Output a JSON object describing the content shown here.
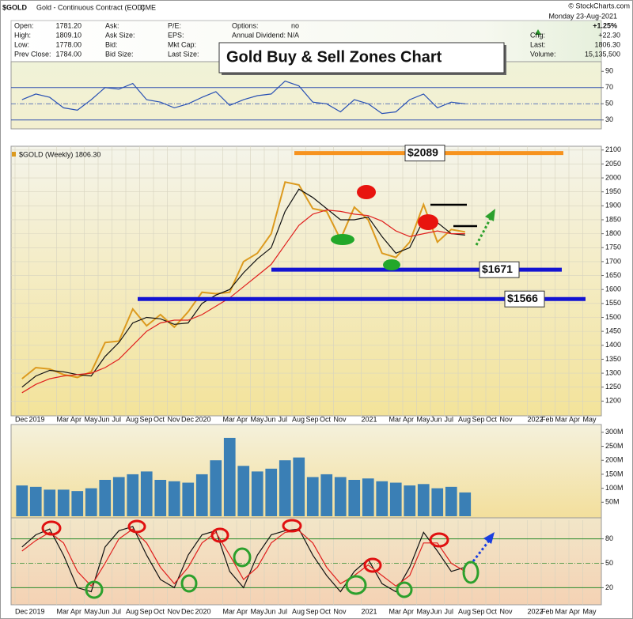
{
  "header": {
    "ticker": "$GOLD",
    "description": "Gold - Continuous Contract (EOD)",
    "exchange": "CME",
    "credit": "© StockCharts.com",
    "quote": [
      [
        "Open:",
        "1781.20"
      ],
      [
        "High:",
        "1809.10"
      ],
      [
        "Low:",
        "1778.00"
      ],
      [
        "Prev Close:",
        "1784.00"
      ]
    ],
    "col2": [
      "Ask:",
      "Ask Size:",
      "Bid:",
      "Bid Size:"
    ],
    "col3": [
      "P/E:",
      "EPS:",
      "Mkt Cap:",
      "Last Size:"
    ],
    "col4": [
      [
        "Options:",
        "no"
      ],
      [
        "Annual Dividend:",
        "N/A"
      ]
    ],
    "date": "Monday  23-Aug-2021",
    "change_pct": "+1.25%",
    "stats": [
      [
        "Chg:",
        "+22.30"
      ],
      [
        "Last:",
        "1806.30"
      ],
      [
        "Volume:",
        "15,135,500"
      ]
    ]
  },
  "chart_data": [
    {
      "type": "line",
      "series": [
        {
          "color": "#2850b4",
          "values": [
            55,
            62,
            58,
            45,
            42,
            55,
            70,
            68,
            75,
            55,
            52,
            45,
            50,
            58,
            65,
            48,
            55,
            60,
            62,
            78,
            72,
            52,
            50,
            40,
            55,
            50,
            38,
            40,
            55,
            62,
            45,
            52,
            50,
            null,
            null,
            null,
            null,
            null,
            null,
            null,
            null,
            null
          ]
        }
      ],
      "ylim": [
        20,
        100
      ],
      "yticks": [
        90,
        70,
        50,
        30
      ],
      "ref_lines": [
        70,
        50,
        30
      ]
    },
    {
      "type": "line",
      "title": "Gold Buy & Sell Zones Chart",
      "label": "$GOLD (Weekly) 1806.30",
      "categories": [
        "Dec",
        "2019",
        null,
        "Mar",
        "Apr",
        "May",
        "Jun",
        "Jul",
        "Aug",
        "Sep",
        "Oct",
        "Nov",
        "Dec",
        "2020",
        null,
        "Mar",
        "Apr",
        "May",
        "Jun",
        "Jul",
        "Aug",
        "Sep",
        "Oct",
        "Nov",
        null,
        "2021",
        null,
        "Mar",
        "Apr",
        "May",
        "Jun",
        "Jul",
        "Aug",
        "Sep",
        "Oct",
        "Nov",
        null,
        "2022",
        "Feb",
        "Mar",
        "Apr",
        "May"
      ],
      "series": [
        {
          "color": "#dc9a1e",
          "values": [
            1280,
            1320,
            1315,
            1295,
            1285,
            1305,
            1410,
            1415,
            1530,
            1470,
            1510,
            1465,
            1520,
            1590,
            1585,
            1590,
            1700,
            1730,
            1800,
            1985,
            1975,
            1890,
            1880,
            1780,
            1895,
            1850,
            1730,
            1715,
            1770,
            1905,
            1770,
            1815,
            1806.3,
            null,
            null,
            null,
            null,
            null,
            null,
            null,
            null,
            null
          ]
        },
        {
          "color": "#111111",
          "values": [
            1250,
            1290,
            1310,
            1305,
            1295,
            1290,
            1360,
            1410,
            1480,
            1500,
            1495,
            1475,
            1480,
            1550,
            1580,
            1600,
            1660,
            1710,
            1750,
            1880,
            1960,
            1930,
            1890,
            1850,
            1850,
            1860,
            1790,
            1730,
            1750,
            1850,
            1840,
            1800,
            1795,
            null,
            null,
            null,
            null,
            null,
            null,
            null,
            null,
            null
          ]
        },
        {
          "color": "#e0201e",
          "values": [
            1230,
            1260,
            1280,
            1290,
            1295,
            1300,
            1320,
            1350,
            1400,
            1450,
            1480,
            1490,
            1490,
            1510,
            1540,
            1570,
            1610,
            1650,
            1690,
            1760,
            1830,
            1870,
            1885,
            1880,
            1870,
            1865,
            1845,
            1810,
            1790,
            1800,
            1810,
            1800,
            1800,
            null,
            null,
            null,
            null,
            null,
            null,
            null,
            null,
            null
          ]
        }
      ],
      "levels": [
        {
          "value": 2089,
          "label": "$2089",
          "color": "#f7931e"
        },
        {
          "value": 1671,
          "label": "$1671",
          "color": "#1414d2"
        },
        {
          "value": 1566,
          "label": "$1566",
          "color": "#1414d2"
        }
      ],
      "ylim": [
        1150,
        2105
      ],
      "yticks": [
        2100,
        2050,
        2000,
        1950,
        1900,
        1850,
        1800,
        1750,
        1700,
        1650,
        1600,
        1550,
        1500,
        1450,
        1400,
        1350,
        1300,
        1250,
        1200
      ],
      "grid": true
    },
    {
      "type": "bar",
      "color": "#3a7fb5",
      "values": [
        110,
        105,
        95,
        95,
        90,
        100,
        130,
        140,
        150,
        160,
        130,
        125,
        120,
        150,
        200,
        280,
        180,
        160,
        170,
        200,
        210,
        140,
        150,
        140,
        130,
        135,
        125,
        120,
        110,
        115,
        100,
        105,
        85,
        null,
        null,
        null,
        null,
        null,
        null,
        null,
        null,
        null
      ],
      "ylim": [
        0,
        325
      ],
      "yticks": [
        {
          "value": 300,
          "label": "300M"
        },
        {
          "value": 250,
          "label": "250M"
        },
        {
          "value": 200,
          "label": "200M"
        },
        {
          "value": 150,
          "label": "150M"
        },
        {
          "value": 100,
          "label": "100M"
        },
        {
          "value": 50,
          "label": "50M"
        }
      ]
    },
    {
      "type": "line",
      "categories": [
        "Dec",
        "2019",
        null,
        "Mar",
        "Apr",
        "May",
        "Jun",
        "Jul",
        "Aug",
        "Sep",
        "Oct",
        "Nov",
        "Dec",
        "2020",
        null,
        "Mar",
        "Apr",
        "May",
        "Jun",
        "Jul",
        "Aug",
        "Sep",
        "Oct",
        "Nov",
        null,
        "2021",
        null,
        "Mar",
        "Apr",
        "May",
        "Jun",
        "Jul",
        "Aug",
        "Sep",
        "Oct",
        "Nov",
        null,
        "2022",
        "Feb",
        "Mar",
        "Apr",
        "May"
      ],
      "series": [
        {
          "color": "#111111",
          "values": [
            70,
            85,
            92,
            60,
            20,
            15,
            70,
            90,
            95,
            60,
            30,
            20,
            60,
            85,
            90,
            40,
            20,
            60,
            85,
            90,
            92,
            60,
            35,
            15,
            40,
            55,
            25,
            15,
            45,
            88,
            65,
            40,
            45,
            null,
            null,
            null,
            null,
            null,
            null,
            null,
            null,
            null
          ]
        },
        {
          "color": "#e0201e",
          "values": [
            65,
            78,
            88,
            75,
            40,
            22,
            50,
            80,
            92,
            75,
            45,
            25,
            45,
            75,
            88,
            60,
            30,
            45,
            75,
            88,
            90,
            75,
            45,
            25,
            35,
            48,
            35,
            22,
            35,
            75,
            75,
            50,
            40,
            null,
            null,
            null,
            null,
            null,
            null,
            null,
            null,
            null
          ]
        }
      ],
      "ylim": [
        0,
        100
      ],
      "yticks": [
        80,
        50,
        20
      ],
      "ref_lines": [
        80,
        50,
        20
      ]
    }
  ]
}
